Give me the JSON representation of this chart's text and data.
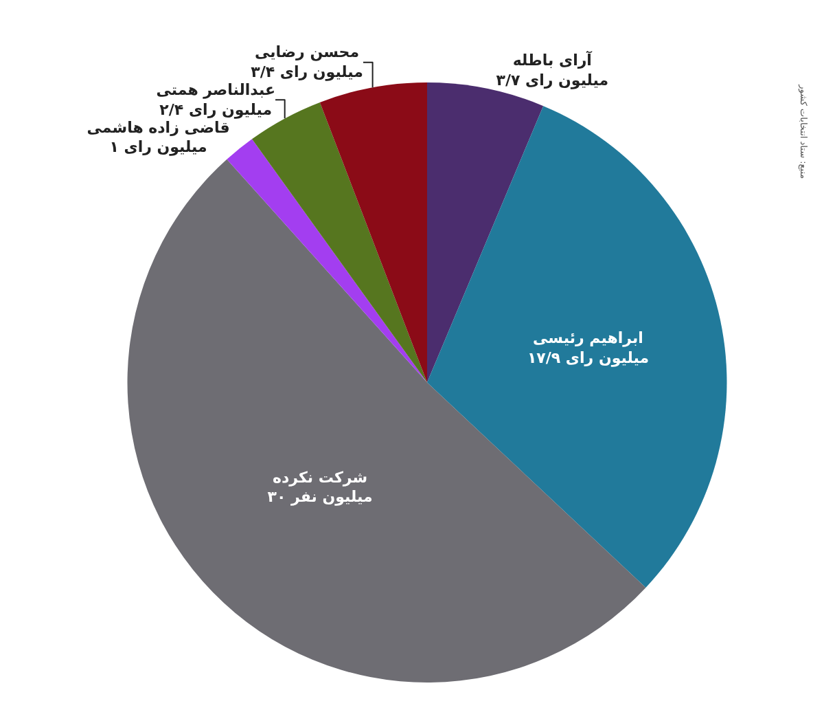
{
  "chart_data": {
    "type": "pie",
    "categories": [
      "آرای باطله",
      "ابراهیم رئیسی",
      "شرکت نکرده",
      "قاضی زاده هاشمی",
      "عبدالناصر همتی",
      "محسن رضایی"
    ],
    "values": [
      3.7,
      17.9,
      30,
      1,
      2.4,
      3.4
    ],
    "value_labels": [
      "۳/۷ میلیون رای",
      "۱۷/۹ میلیون رای",
      "۳۰ میلیون نفر",
      "۱ میلیون رای",
      "۲/۴ میلیون رای",
      "۳/۴ میلیون رای"
    ],
    "colors": [
      "#4b2d6e",
      "#217a9b",
      "#6e6d73",
      "#a33ef0",
      "#56761f",
      "#8b0b17"
    ],
    "annotations": [
      "منبع: ستاد انتخابات کشور"
    ],
    "legend": false
  }
}
